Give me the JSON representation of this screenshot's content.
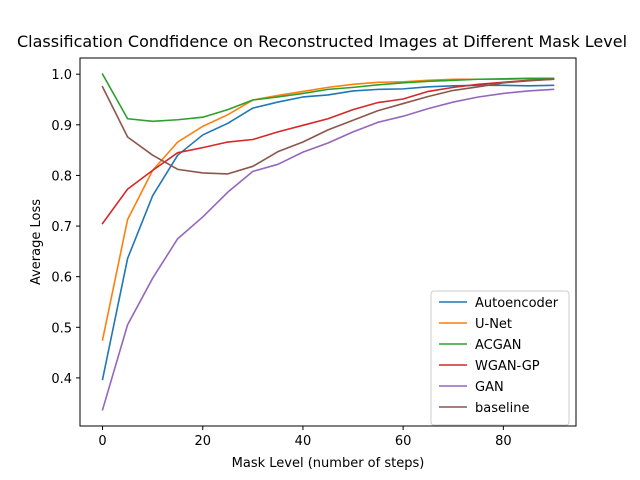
{
  "chart_data": {
    "type": "line",
    "title": "Classification Condfidence on Reconstructed Images at Different Mask Level",
    "xlabel": "Mask Level (number of steps)",
    "ylabel": "Average Loss",
    "xlim": [
      -4.5,
      94.5
    ],
    "ylim": [
      0.305,
      1.032
    ],
    "xticks": [
      0,
      20,
      40,
      60,
      80
    ],
    "yticks": [
      0.4,
      0.5,
      0.6,
      0.7,
      0.8,
      0.9,
      1.0
    ],
    "ytick_labels": [
      "0.4",
      "0.5",
      "0.6",
      "0.7",
      "0.8",
      "0.9",
      "1.0"
    ],
    "grid": false,
    "legend_position": "lower-right",
    "x": [
      0,
      5,
      10,
      15,
      20,
      25,
      30,
      35,
      40,
      45,
      50,
      55,
      60,
      65,
      70,
      75,
      80,
      85,
      90
    ],
    "series": [
      {
        "name": "Autoencoder",
        "color": "#1f77b4",
        "values": [
          0.397,
          0.636,
          0.76,
          0.84,
          0.88,
          0.903,
          0.933,
          0.945,
          0.955,
          0.959,
          0.967,
          0.97,
          0.971,
          0.975,
          0.977,
          0.978,
          0.978,
          0.977,
          0.978
        ]
      },
      {
        "name": "U-Net",
        "color": "#ff7f0e",
        "values": [
          0.475,
          0.713,
          0.81,
          0.866,
          0.897,
          0.92,
          0.949,
          0.958,
          0.966,
          0.974,
          0.98,
          0.984,
          0.985,
          0.988,
          0.99,
          0.99,
          0.99,
          0.991,
          0.991
        ]
      },
      {
        "name": "ACGAN",
        "color": "#2ca02c",
        "values": [
          1.0,
          0.912,
          0.907,
          0.91,
          0.915,
          0.93,
          0.949,
          0.955,
          0.962,
          0.97,
          0.974,
          0.979,
          0.983,
          0.986,
          0.988,
          0.99,
          0.991,
          0.992,
          0.992
        ]
      },
      {
        "name": "WGAN-GP",
        "color": "#d62728",
        "values": [
          0.705,
          0.773,
          0.81,
          0.845,
          0.855,
          0.866,
          0.871,
          0.886,
          0.899,
          0.912,
          0.93,
          0.944,
          0.951,
          0.966,
          0.974,
          0.98,
          0.984,
          0.988,
          0.99
        ]
      },
      {
        "name": "GAN",
        "color": "#9467bd",
        "values": [
          0.337,
          0.505,
          0.597,
          0.675,
          0.718,
          0.767,
          0.808,
          0.822,
          0.846,
          0.864,
          0.886,
          0.905,
          0.917,
          0.932,
          0.945,
          0.955,
          0.962,
          0.967,
          0.97
        ]
      },
      {
        "name": "baseline",
        "color": "#8c564b",
        "values": [
          0.975,
          0.876,
          0.84,
          0.812,
          0.805,
          0.803,
          0.818,
          0.847,
          0.866,
          0.89,
          0.909,
          0.928,
          0.942,
          0.956,
          0.968,
          0.975,
          0.983,
          0.987,
          0.99
        ]
      }
    ]
  }
}
